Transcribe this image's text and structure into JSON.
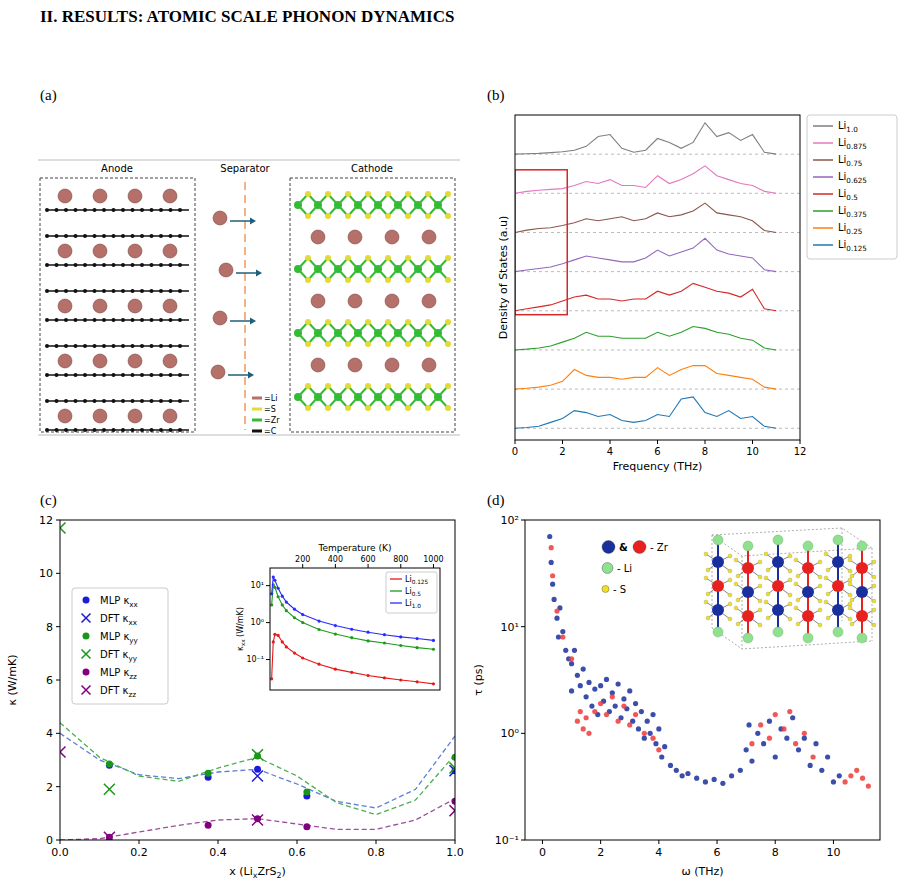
{
  "heading": "II.   RESULTS: ATOMIC SCALE PHONON DYNAMICS",
  "diagram": {
    "panel_label": "(a)",
    "anode": "Anode",
    "separator": "Separator",
    "cathode": "Cathode",
    "legend": [
      {
        "label": "=Li",
        "color": "#b5706a"
      },
      {
        "label": "=S",
        "color": "#e3da3a"
      },
      {
        "label": "=Zr",
        "color": "#33bb33"
      },
      {
        "label": "=C",
        "color": "#111111"
      }
    ]
  },
  "chart_data": [
    {
      "type": "line",
      "panel_label": "(b)",
      "x_label": "Frequency (THz)",
      "y_label": "Density of States (a.u)",
      "xlim": [
        0,
        12
      ],
      "ylim": [
        -0.3,
        8.0
      ],
      "xticks": [
        0,
        2,
        4,
        6,
        8,
        10,
        12
      ],
      "tick_labels": "x",
      "legend": "outside right",
      "x": [
        0,
        0.5,
        1,
        1.5,
        2,
        2.5,
        3,
        3.5,
        4,
        4.5,
        5,
        5.5,
        6,
        6.5,
        7,
        7.5,
        8,
        8.5,
        9,
        9.5,
        10,
        10.5,
        11
      ],
      "highlight": {
        "x": [
          0,
          2.2
        ],
        "y": [
          2.9,
          6.6
        ],
        "color": "#d62728"
      },
      "series": [
        {
          "name": "Li1.0",
          "color": "#7f7f7f",
          "values": [
            0,
            0.01,
            0.02,
            0.04,
            0.06,
            0.1,
            0.2,
            0.45,
            0.5,
            0.15,
            0.05,
            0.1,
            0.4,
            0.3,
            0.15,
            0.3,
            0.8,
            0.45,
            0.55,
            0.35,
            0.5,
            0.05,
            0
          ]
        },
        {
          "name": "Li0.875",
          "color": "#e377c2",
          "values": [
            0,
            0.05,
            0.08,
            0.1,
            0.12,
            0.2,
            0.3,
            0.25,
            0.35,
            0.2,
            0.2,
            0.15,
            0.45,
            0.25,
            0.35,
            0.5,
            0.7,
            0.45,
            0.35,
            0.25,
            0.2,
            0.05,
            0
          ]
        },
        {
          "name": "Li0.75",
          "color": "#8c564b",
          "values": [
            0,
            0.06,
            0.1,
            0.12,
            0.18,
            0.25,
            0.35,
            0.3,
            0.35,
            0.4,
            0.3,
            0.35,
            0.5,
            0.4,
            0.45,
            0.55,
            0.75,
            0.5,
            0.45,
            0.4,
            0.3,
            0.05,
            0
          ]
        },
        {
          "name": "Li0.625",
          "color": "#9467bd",
          "values": [
            0,
            0.04,
            0.08,
            0.12,
            0.2,
            0.3,
            0.4,
            0.35,
            0.3,
            0.25,
            0.25,
            0.35,
            0.55,
            0.4,
            0.5,
            0.6,
            0.85,
            0.55,
            0.45,
            0.4,
            0.35,
            0.05,
            0
          ]
        },
        {
          "name": "Li0.5",
          "color": "#d62728",
          "values": [
            0,
            0.05,
            0.1,
            0.15,
            0.25,
            0.35,
            0.4,
            0.3,
            0.3,
            0.25,
            0.3,
            0.3,
            0.5,
            0.4,
            0.5,
            0.7,
            0.6,
            0.5,
            0.45,
            0.35,
            0.55,
            0.05,
            0
          ]
        },
        {
          "name": "Li0.375",
          "color": "#2ca02c",
          "values": [
            0,
            0.02,
            0.05,
            0.1,
            0.2,
            0.3,
            0.45,
            0.35,
            0.35,
            0.3,
            0.3,
            0.3,
            0.45,
            0.35,
            0.45,
            0.6,
            0.55,
            0.45,
            0.4,
            0.3,
            0.25,
            0.05,
            0
          ]
        },
        {
          "name": "Li0.25",
          "color": "#ff7f0e",
          "values": [
            0,
            0.02,
            0.05,
            0.1,
            0.2,
            0.5,
            0.35,
            0.3,
            0.3,
            0.25,
            0.3,
            0.3,
            0.55,
            0.35,
            0.5,
            0.6,
            0.6,
            0.4,
            0.35,
            0.3,
            0.25,
            0.05,
            0
          ]
        },
        {
          "name": "Li0.125",
          "color": "#1f77b4",
          "values": [
            0,
            0.02,
            0.05,
            0.15,
            0.25,
            0.45,
            0.4,
            0.3,
            0.35,
            0.2,
            0.15,
            0.2,
            0.35,
            0.3,
            0.75,
            0.8,
            0.4,
            0.3,
            0.45,
            0.25,
            0.3,
            0.05,
            0
          ]
        }
      ]
    },
    {
      "type": "scatter",
      "panel_label": "(c)",
      "x_label": "x (LixZrS2)",
      "y_label": "κ (W/mK)",
      "xlim": [
        0,
        1
      ],
      "ylim": [
        0,
        12
      ],
      "xticks": [
        {
          "value": 0,
          "label": "0.0"
        },
        {
          "value": 0.2,
          "label": "0.2"
        },
        {
          "value": 0.4,
          "label": "0.4"
        },
        {
          "value": 0.6,
          "label": "0.6"
        },
        {
          "value": 0.8,
          "label": "0.8"
        },
        {
          "value": 1,
          "label": "1.0"
        }
      ],
      "yticks": [
        0,
        2,
        4,
        6,
        8,
        10,
        12
      ],
      "legend": "center left",
      "series": [
        {
          "name": "MLP κxx",
          "type": "scatter",
          "marker": "circle",
          "color": "#1c1cd6",
          "x": [
            0.125,
            0.375,
            0.5,
            0.625,
            1.0
          ],
          "values": [
            2.8,
            2.35,
            2.65,
            1.65,
            2.6
          ]
        },
        {
          "name": "DFT κxx",
          "type": "scatter",
          "marker": "x",
          "color": "#1c1cd6",
          "x": [
            0.5,
            1.0
          ],
          "values": [
            2.4,
            2.6
          ]
        },
        {
          "name": "MLP κyy",
          "type": "scatter",
          "marker": "circle",
          "color": "#1a961a",
          "x": [
            0.125,
            0.375,
            0.5,
            0.625,
            1.0
          ],
          "values": [
            2.85,
            2.5,
            3.15,
            1.8,
            3.1
          ]
        },
        {
          "name": "DFT κyy",
          "type": "scatter",
          "marker": "x",
          "color": "#1a961a",
          "x": [
            0,
            0.125,
            0.5,
            1.0
          ],
          "values": [
            11.7,
            1.9,
            3.2,
            2.7
          ]
        },
        {
          "name": "MLP κzz",
          "type": "scatter",
          "marker": "circle",
          "color": "#800080",
          "x": [
            0.125,
            0.375,
            0.5,
            0.625,
            1.0
          ],
          "values": [
            0.1,
            0.55,
            0.8,
            0.5,
            1.45
          ]
        },
        {
          "name": "DFT κzz",
          "type": "scatter",
          "marker": "x",
          "color": "#800080",
          "x": [
            0,
            0.125,
            0.5,
            1.0
          ],
          "values": [
            3.3,
            0.1,
            0.75,
            1.1
          ]
        },
        {
          "type": "line",
          "line_style": "dashed",
          "color": "#5a7fd6",
          "x": [
            0,
            0.1,
            0.2,
            0.3,
            0.4,
            0.5,
            0.6,
            0.7,
            0.8,
            0.9,
            1.0
          ],
          "values": [
            4.0,
            3.0,
            2.45,
            2.3,
            2.55,
            2.65,
            2.1,
            1.45,
            1.2,
            1.9,
            3.9
          ]
        },
        {
          "type": "line",
          "line_style": "dashed",
          "color": "#4caf50",
          "x": [
            0,
            0.1,
            0.2,
            0.3,
            0.4,
            0.5,
            0.6,
            0.7,
            0.8,
            0.9,
            1.0
          ],
          "values": [
            4.4,
            3.1,
            2.4,
            2.2,
            2.7,
            3.1,
            2.4,
            1.4,
            0.95,
            1.5,
            3.2
          ]
        },
        {
          "type": "line",
          "line_style": "dashed",
          "color": "#9b4f9b",
          "x": [
            0,
            0.1,
            0.2,
            0.3,
            0.4,
            0.5,
            0.6,
            0.7,
            0.8,
            0.9,
            1.0
          ],
          "values": [
            0.0,
            0.05,
            0.3,
            0.55,
            0.75,
            0.8,
            0.6,
            0.4,
            0.4,
            0.75,
            1.55
          ]
        }
      ]
    },
    {
      "type": "line",
      "marker": "circle",
      "x_label": "Temperature (K)",
      "y_label": "κxx (W/mK)",
      "log": "y",
      "xlim": [
        0,
        1040
      ],
      "ylim": [
        0.015,
        30
      ],
      "xticks": [
        200,
        400,
        600,
        800,
        1000
      ],
      "yticks": [
        {
          "value": 0.1,
          "label": "10⁻¹"
        },
        {
          "value": 1,
          "label": "10⁰"
        },
        {
          "value": 10,
          "label": "10¹"
        }
      ],
      "legend": "upper right",
      "x": [
        10,
        20,
        30,
        50,
        75,
        100,
        150,
        200,
        300,
        400,
        500,
        600,
        700,
        800,
        900,
        1000
      ],
      "series": [
        {
          "name": "Li0.125",
          "color": "#e41a1c",
          "values": [
            0.03,
            0.3,
            0.48,
            0.45,
            0.3,
            0.22,
            0.15,
            0.11,
            0.075,
            0.055,
            0.045,
            0.037,
            0.032,
            0.028,
            0.025,
            0.022
          ]
        },
        {
          "name": "Li0.5",
          "color": "#1f9a1f",
          "values": [
            3,
            10.5,
            9,
            5,
            3,
            2.1,
            1.35,
            1.0,
            0.65,
            0.49,
            0.39,
            0.32,
            0.28,
            0.24,
            0.21,
            0.19
          ]
        },
        {
          "name": "Li1.0",
          "color": "#2b2bff",
          "values": [
            6,
            17,
            14,
            8.5,
            5.2,
            3.6,
            2.3,
            1.65,
            1.1,
            0.83,
            0.66,
            0.55,
            0.47,
            0.41,
            0.37,
            0.33
          ]
        }
      ]
    },
    {
      "type": "scatter",
      "panel_label": "(d)",
      "x_label": "ω (THz)",
      "y_label": "τ (ps)",
      "log": "y",
      "xlim": [
        -0.6,
        11.6
      ],
      "ylim": [
        0.1,
        100
      ],
      "xticks": [
        0,
        2,
        4,
        6,
        8,
        10
      ],
      "yticks": [
        {
          "value": 0.1,
          "label": "10⁻¹"
        },
        {
          "value": 1,
          "label": "10⁰"
        },
        {
          "value": 10,
          "label": "10¹"
        },
        {
          "value": 100,
          "label": "10²"
        }
      ],
      "structure_legend": [
        {
          "colors": [
            "#1a2f9e",
            "#e82020"
          ],
          "joiner": "&",
          "label": "- Zr"
        },
        {
          "colors": [
            "#8fe08f"
          ],
          "label": "- Li"
        },
        {
          "colors": [
            "#f0e020"
          ],
          "label": "- S"
        }
      ],
      "series": [
        {
          "color": "#1a2f9e",
          "x": [
            0.25,
            0.3,
            0.35,
            0.4,
            0.5,
            0.55,
            0.6,
            0.7,
            0.8,
            0.9,
            1.0,
            1.0,
            1.1,
            1.2,
            1.3,
            1.4,
            1.5,
            1.6,
            1.7,
            1.8,
            1.9,
            2.0,
            2.1,
            2.2,
            2.3,
            2.4,
            2.5,
            2.6,
            2.7,
            2.8,
            2.9,
            3.0,
            3.1,
            3.2,
            3.3,
            3.4,
            3.5,
            3.6,
            3.7,
            3.8,
            3.9,
            4.0,
            4.1,
            4.2,
            4.4,
            4.6,
            4.8,
            5.0,
            5.3,
            5.6,
            5.9,
            6.2,
            6.5,
            6.8,
            7.0,
            7.1,
            7.2,
            7.4,
            7.6,
            7.8,
            8.0,
            8.2,
            8.4,
            8.6,
            8.8,
            9.0,
            9.2,
            9.4,
            9.6,
            9.8,
            10.0,
            10.2
          ],
          "values": [
            70,
            40,
            25,
            18,
            12,
            8,
            15,
            9,
            6,
            5,
            4.5,
            2.5,
            6,
            3.5,
            2.8,
            4,
            2.2,
            3,
            1.8,
            2.6,
            1.5,
            2.8,
            2.0,
            3.2,
            1.6,
            2.4,
            1.8,
            2.9,
            1.4,
            2.1,
            1.7,
            2.5,
            1.3,
            1.9,
            1.1,
            1.6,
            0.9,
            1.3,
            1.0,
            1.5,
            0.8,
            1.1,
            0.6,
            0.75,
            0.5,
            0.45,
            0.4,
            0.42,
            0.38,
            0.35,
            0.37,
            0.34,
            0.4,
            0.45,
            0.7,
            1.2,
            0.55,
            1.0,
            0.8,
            1.3,
            0.6,
            1.1,
            0.9,
            1.4,
            0.7,
            0.9,
            0.5,
            0.8,
            0.45,
            0.6,
            0.35,
            0.4
          ]
        },
        {
          "color": "#f03a3a",
          "x": [
            0.3,
            0.35,
            0.5,
            0.7,
            1.0,
            1.2,
            1.3,
            1.4,
            1.5,
            1.6,
            1.8,
            2.0,
            2.2,
            2.4,
            2.6,
            2.8,
            3.0,
            3.2,
            3.5,
            3.8,
            4.0,
            7.2,
            7.5,
            7.8,
            8.0,
            8.3,
            8.5,
            8.7,
            9.0,
            9.3,
            10.4,
            10.6,
            10.8,
            11.0,
            11.2
          ],
          "values": [
            55,
            30,
            14,
            8,
            5,
            1.3,
            1.6,
            1.1,
            1.4,
            1.0,
            1.6,
            1.9,
            1.5,
            2.2,
            1.3,
            1.8,
            1.2,
            1.5,
            1.0,
            0.9,
            0.7,
            0.8,
            1.2,
            0.9,
            1.5,
            1.1,
            1.6,
            0.8,
            1.0,
            0.6,
            0.35,
            0.4,
            0.45,
            0.38,
            0.32
          ]
        }
      ]
    }
  ]
}
